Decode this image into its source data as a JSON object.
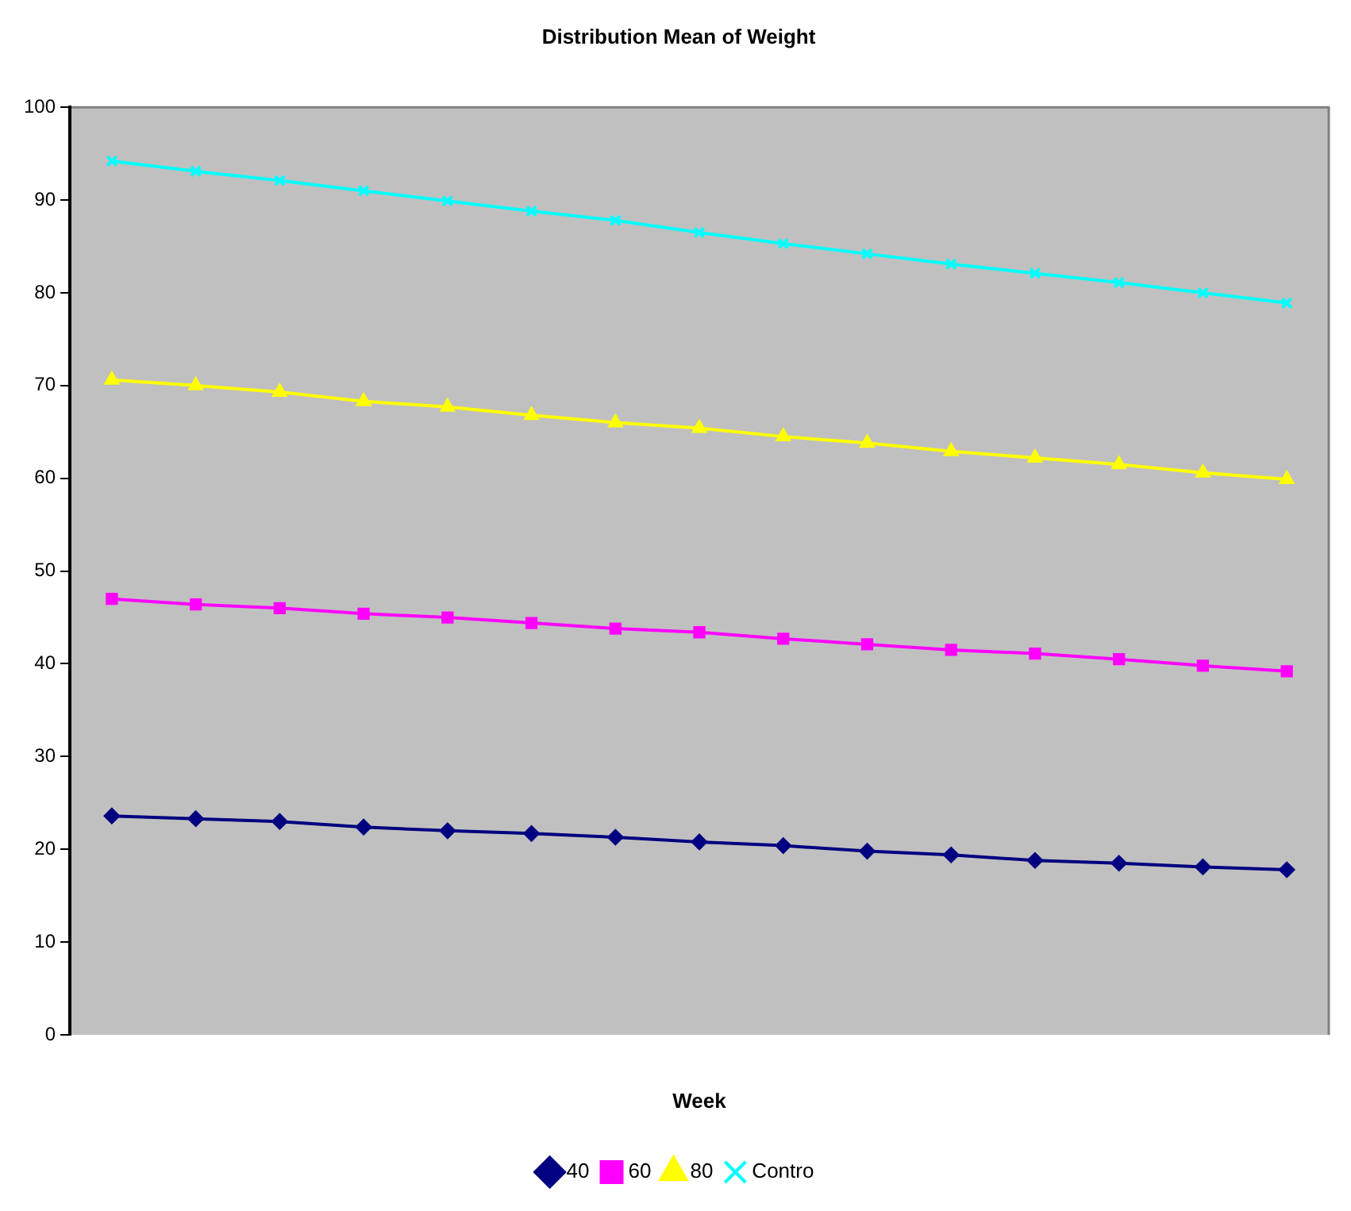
{
  "chart_data": {
    "type": "line",
    "title": "Distribution Mean of Weight",
    "xlabel": "Week",
    "categories": [
      null,
      null,
      null,
      null,
      null,
      null,
      null,
      null,
      null,
      null,
      null,
      null,
      null,
      null,
      null
    ],
    "series": [
      {
        "name": "40",
        "color": "#000080",
        "marker": "diamond",
        "values": [
          23.6,
          23.3,
          23.0,
          22.4,
          22.0,
          21.7,
          21.3,
          20.8,
          20.4,
          19.8,
          19.4,
          18.8,
          18.5,
          18.1,
          17.8
        ]
      },
      {
        "name": "60",
        "color": "#ff00ff",
        "marker": "square",
        "values": [
          47.0,
          46.4,
          46.0,
          45.4,
          45.0,
          44.4,
          43.8,
          43.4,
          42.7,
          42.1,
          41.5,
          41.1,
          40.5,
          39.8,
          39.2
        ]
      },
      {
        "name": "80",
        "color": "#ffff00",
        "marker": "triangle",
        "values": [
          70.6,
          70.0,
          69.3,
          68.3,
          67.7,
          66.8,
          66.0,
          65.4,
          64.5,
          63.8,
          62.9,
          62.2,
          61.5,
          60.6,
          59.9
        ]
      },
      {
        "name": "Contro",
        "color": "#00ffff",
        "marker": "cross",
        "values": [
          94.2,
          93.1,
          92.1,
          91.0,
          89.9,
          88.8,
          87.8,
          86.5,
          85.3,
          84.2,
          83.1,
          82.1,
          81.1,
          80.0,
          78.9
        ]
      }
    ],
    "ylim": [
      0,
      100
    ],
    "yticks": [
      0,
      10,
      20,
      30,
      40,
      50,
      60,
      70,
      80,
      90,
      100
    ],
    "grid": false,
    "legend": "bottom",
    "line_style": "solid"
  }
}
